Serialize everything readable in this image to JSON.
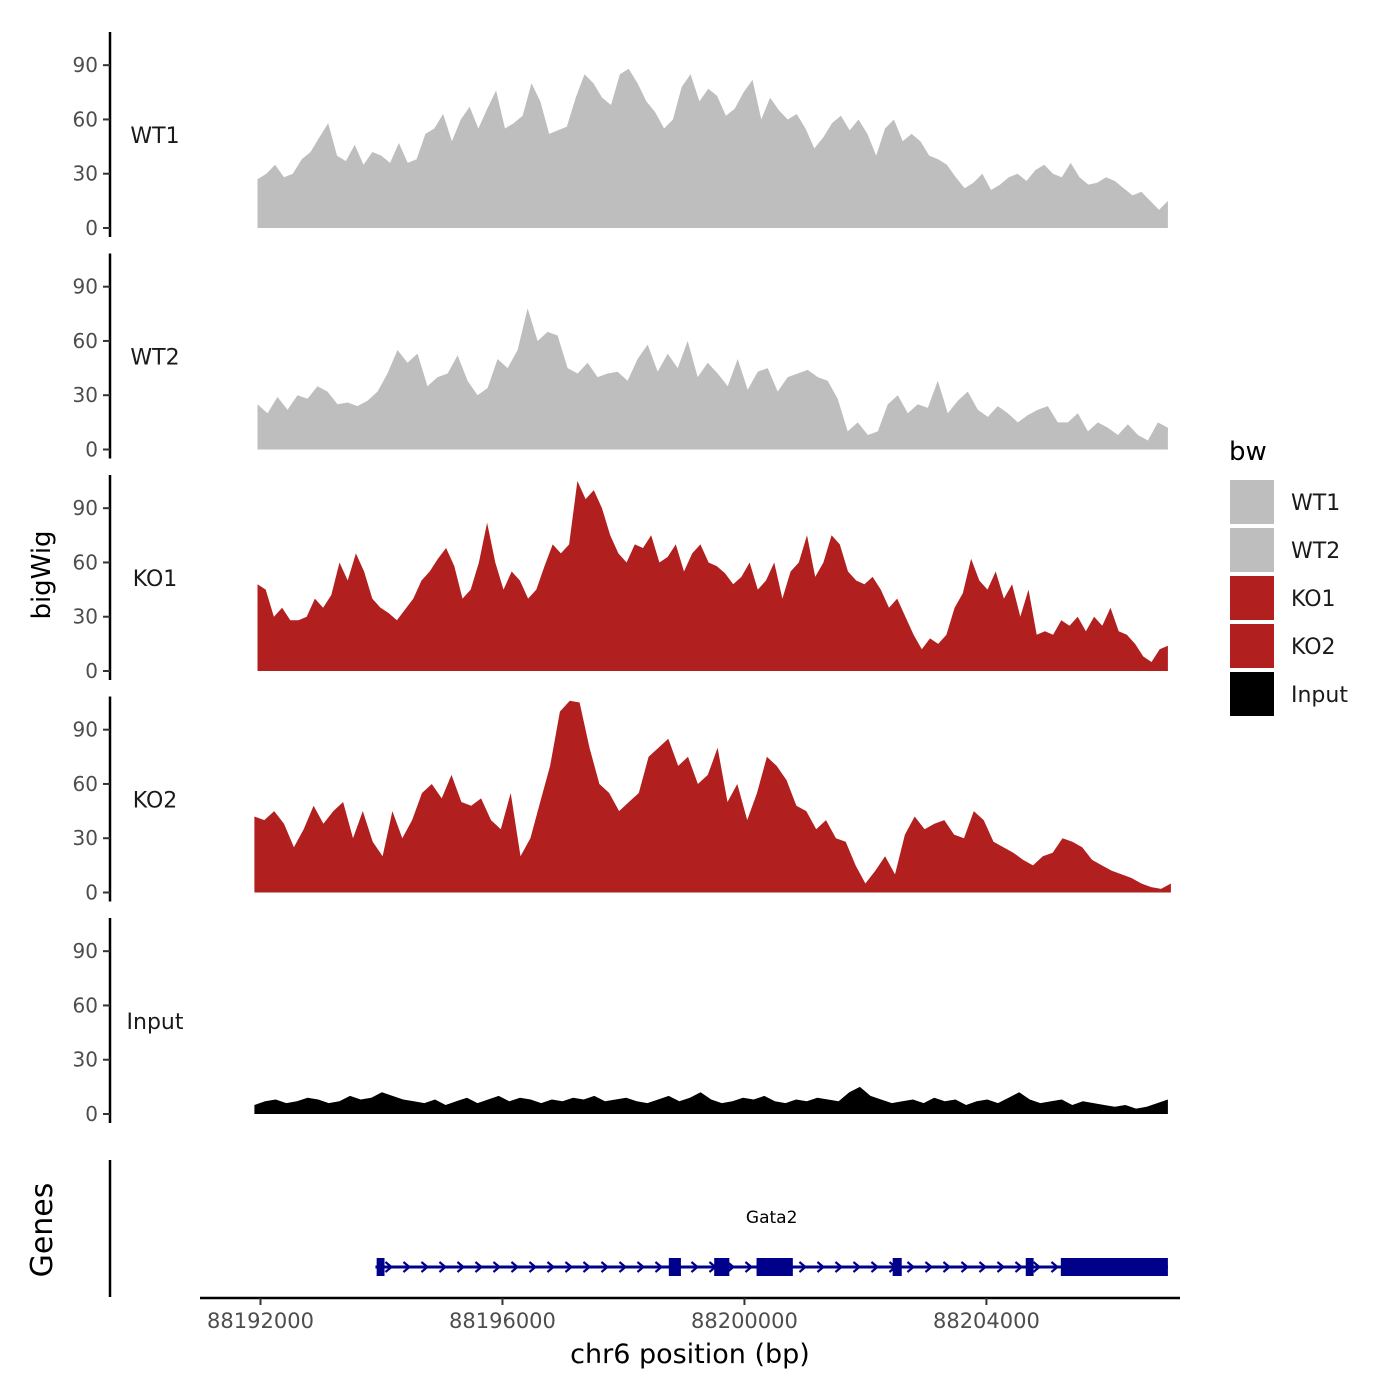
{
  "chart_data": {
    "type": "area",
    "title": "",
    "ylabel": "bigWig",
    "xlabel": "chr6 position (bp)",
    "xlim": [
      88191000,
      88207200
    ],
    "ylim": [
      0,
      110
    ],
    "y_ticks": [
      0,
      30,
      60,
      90
    ],
    "x_ticks": [
      88192000,
      88196000,
      88200000,
      88204000
    ],
    "x_tick_labels": [
      "88192000",
      "88196000",
      "88200000",
      "88204000"
    ],
    "legend": {
      "title": "bw",
      "position": "right",
      "entries": [
        {
          "label": "WT1",
          "color": "#bebebe"
        },
        {
          "label": "WT2",
          "color": "#bebebe"
        },
        {
          "label": "KO1",
          "color": "#b21f1f"
        },
        {
          "label": "KO2",
          "color": "#b21f1f"
        },
        {
          "label": "Input",
          "color": "#000000"
        }
      ]
    },
    "series": [
      {
        "name": "WT1",
        "color": "#bebebe",
        "x_start": 88191950,
        "x_end": 88207000,
        "values": [
          27,
          30,
          35,
          28,
          30,
          38,
          42,
          50,
          58,
          40,
          37,
          46,
          35,
          42,
          40,
          36,
          47,
          36,
          38,
          52,
          55,
          63,
          48,
          60,
          67,
          55,
          66,
          76,
          55,
          58,
          62,
          80,
          70,
          52,
          54,
          56,
          72,
          85,
          80,
          72,
          68,
          85,
          88,
          80,
          70,
          64,
          55,
          60,
          78,
          85,
          70,
          77,
          73,
          62,
          66,
          75,
          82,
          60,
          72,
          65,
          60,
          63,
          55,
          44,
          50,
          58,
          62,
          54,
          60,
          52,
          40,
          55,
          60,
          48,
          52,
          48,
          40,
          38,
          35,
          28,
          22,
          25,
          30,
          21,
          24,
          28,
          30,
          26,
          32,
          35,
          30,
          28,
          36,
          28,
          24,
          25,
          28,
          26,
          22,
          18,
          20,
          15,
          10,
          15
        ]
      },
      {
        "name": "WT2",
        "color": "#bebebe",
        "x_start": 88191950,
        "x_end": 88207000,
        "values": [
          25,
          20,
          29,
          22,
          30,
          28,
          35,
          32,
          25,
          26,
          24,
          27,
          32,
          42,
          55,
          48,
          53,
          35,
          40,
          42,
          52,
          38,
          30,
          34,
          50,
          45,
          55,
          78,
          60,
          65,
          63,
          45,
          42,
          48,
          40,
          42,
          43,
          38,
          50,
          58,
          43,
          53,
          45,
          60,
          40,
          48,
          42,
          35,
          50,
          33,
          43,
          45,
          32,
          40,
          42,
          44,
          40,
          38,
          28,
          10,
          15,
          8,
          10,
          25,
          30,
          20,
          25,
          23,
          38,
          20,
          27,
          32,
          22,
          18,
          24,
          20,
          15,
          19,
          22,
          24,
          15,
          15,
          20,
          10,
          15,
          12,
          8,
          14,
          8,
          5,
          15,
          12
        ]
      },
      {
        "name": "KO1",
        "color": "#b21f1f",
        "x_start": 88191950,
        "x_end": 88207000,
        "values": [
          48,
          45,
          30,
          35,
          28,
          28,
          30,
          40,
          35,
          42,
          60,
          50,
          65,
          55,
          40,
          35,
          32,
          28,
          34,
          40,
          50,
          55,
          62,
          68,
          58,
          40,
          45,
          60,
          82,
          60,
          45,
          55,
          50,
          40,
          45,
          58,
          70,
          65,
          70,
          105,
          95,
          100,
          90,
          75,
          65,
          60,
          70,
          68,
          75,
          60,
          63,
          70,
          55,
          65,
          70,
          60,
          58,
          54,
          48,
          52,
          60,
          45,
          50,
          60,
          40,
          55,
          60,
          75,
          52,
          60,
          75,
          70,
          55,
          50,
          48,
          52,
          45,
          35,
          40,
          30,
          20,
          12,
          18,
          15,
          20,
          35,
          43,
          62,
          50,
          45,
          55,
          40,
          48,
          30,
          45,
          20,
          22,
          20,
          28,
          25,
          30,
          22,
          30,
          25,
          35,
          22,
          20,
          15,
          8,
          5,
          12,
          14
        ]
      },
      {
        "name": "KO2",
        "color": "#b21f1f",
        "x_start": 88191900,
        "x_end": 88207050,
        "values": [
          42,
          40,
          45,
          38,
          25,
          35,
          48,
          38,
          45,
          50,
          30,
          45,
          28,
          20,
          45,
          30,
          40,
          55,
          60,
          52,
          65,
          50,
          48,
          52,
          40,
          35,
          55,
          20,
          30,
          50,
          70,
          100,
          106,
          105,
          80,
          60,
          55,
          45,
          50,
          55,
          75,
          80,
          85,
          70,
          75,
          60,
          65,
          80,
          50,
          60,
          40,
          55,
          75,
          70,
          62,
          48,
          45,
          35,
          40,
          30,
          28,
          15,
          5,
          12,
          20,
          10,
          32,
          42,
          35,
          38,
          40,
          32,
          30,
          45,
          40,
          28,
          25,
          22,
          18,
          15,
          20,
          22,
          30,
          28,
          25,
          18,
          15,
          12,
          10,
          8,
          5,
          3,
          2,
          5
        ]
      },
      {
        "name": "Input",
        "color": "#000000",
        "x_start": 88191900,
        "x_end": 88207000,
        "values": [
          5,
          7,
          8,
          6,
          7,
          9,
          8,
          6,
          7,
          10,
          8,
          9,
          12,
          10,
          8,
          7,
          6,
          8,
          5,
          7,
          9,
          6,
          8,
          10,
          7,
          9,
          8,
          6,
          8,
          7,
          9,
          8,
          10,
          7,
          8,
          9,
          7,
          6,
          8,
          10,
          7,
          9,
          12,
          8,
          6,
          7,
          9,
          8,
          10,
          7,
          6,
          8,
          7,
          9,
          8,
          7,
          12,
          15,
          10,
          8,
          6,
          7,
          8,
          6,
          9,
          7,
          8,
          5,
          7,
          8,
          6,
          9,
          12,
          8,
          6,
          7,
          8,
          5,
          7,
          6,
          5,
          4,
          5,
          3,
          4,
          6,
          8
        ]
      }
    ],
    "genes": [
      {
        "name": "Gata2",
        "start": 88193900,
        "end": 88207000,
        "strand": "+",
        "color": "#00008b",
        "exons": [
          [
            88193920,
            88194050
          ],
          [
            88198750,
            88198950
          ],
          [
            88199500,
            88199750
          ],
          [
            88200200,
            88200800
          ],
          [
            88202450,
            88202600
          ],
          [
            88204650,
            88204780
          ],
          [
            88205230,
            88207000
          ]
        ]
      }
    ],
    "panel_labels": [
      "WT1",
      "WT2",
      "KO1",
      "KO2",
      "Input"
    ],
    "gene_track_label": "Genes"
  }
}
